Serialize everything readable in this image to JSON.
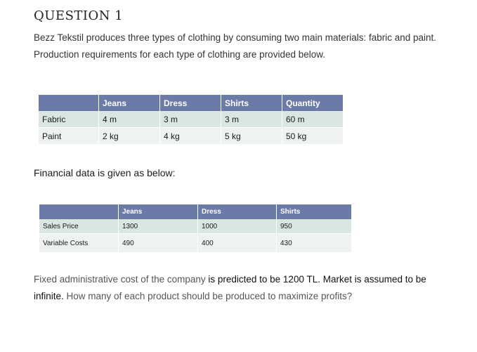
{
  "question_title": "QUESTION 1",
  "intro_text": "Bezz Tekstil produces three types of clothing by consuming two main materials: fabric and paint. Production requirements for each type of clothing are provided below.",
  "production_table": {
    "headers": [
      "",
      "Jeans",
      "Dress",
      "Shirts",
      "Quantity"
    ],
    "rows": [
      [
        "Fabric",
        "4 m",
        "3 m",
        "3 m",
        "60 m"
      ],
      [
        "Paint",
        "2 kg",
        "4 kg",
        "5 kg",
        "50 kg"
      ]
    ]
  },
  "financial_intro": "Financial data is given as below:",
  "financial_table": {
    "headers": [
      "",
      "Jeans",
      "Dress",
      "Shirts"
    ],
    "rows": [
      [
        "Sales Price",
        "1300",
        "1000",
        "950"
      ],
      [
        "Variable Costs",
        "490",
        "400",
        "430"
      ]
    ]
  },
  "closing": {
    "part1": "Fixed administrative cost of the company ",
    "part2": "is predicted to be 1200 TL. Market is assumed to be infinite.",
    "part3": " How many of each product should be produced to maximize profits?"
  },
  "colors": {
    "header_bg": "#6b7aa6",
    "row_alt_1": "#d9e6e3",
    "row_alt_2": "#eef3f2"
  }
}
